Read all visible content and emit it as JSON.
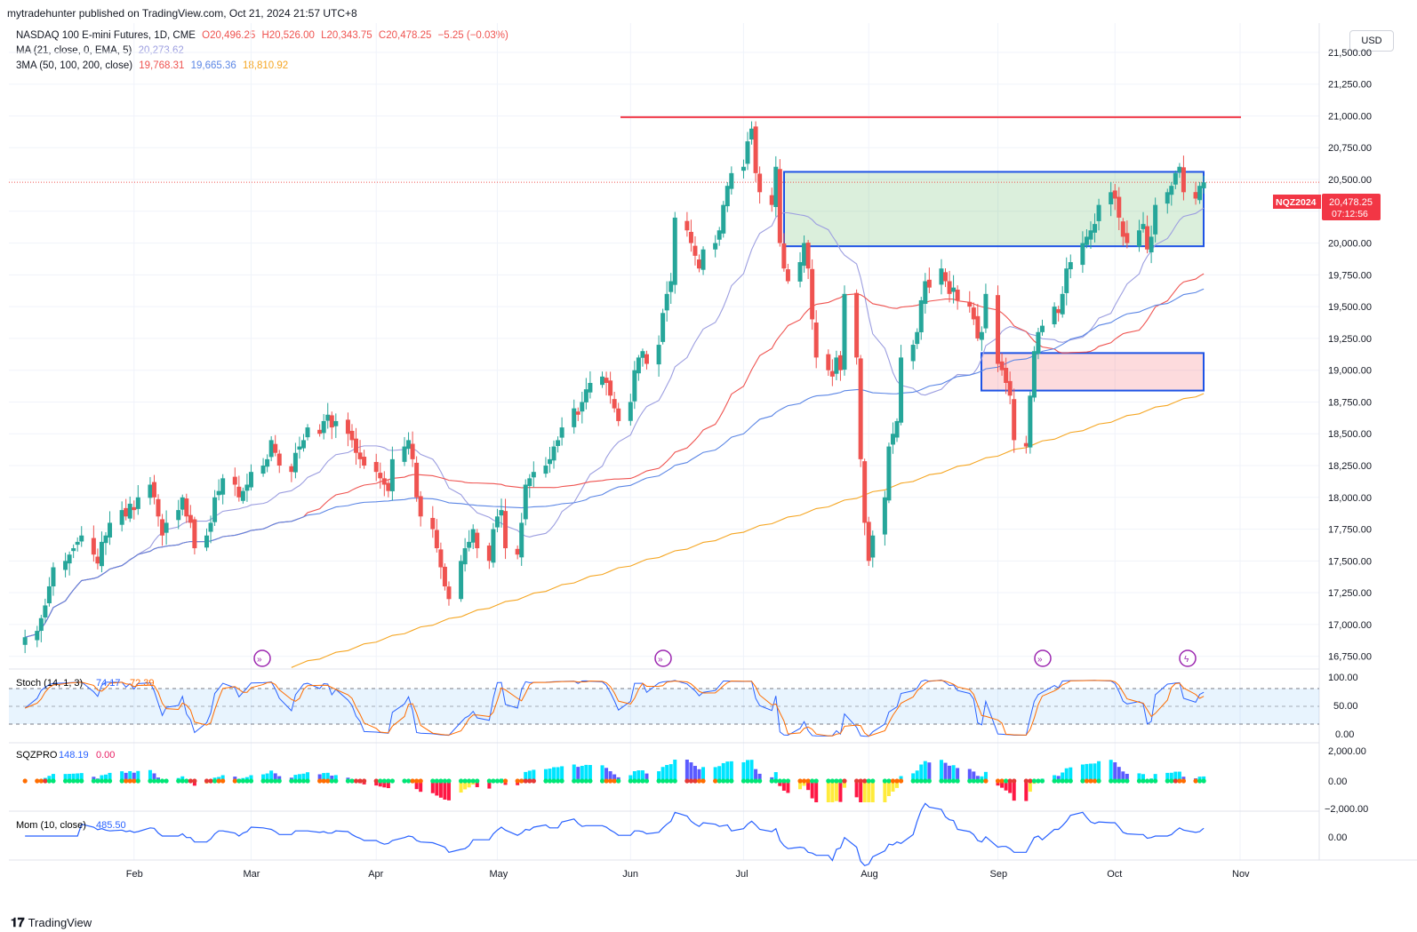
{
  "header": {
    "published": "mytradehunter published on TradingView.com, Oct 21, 2024 21:57 UTC+8"
  },
  "legend": {
    "symbol": "NASDAQ 100 E-mini Futures, 1D, CME",
    "o": "O20,496.25",
    "h": "H20,526.00",
    "l": "L20,343.75",
    "c": "C20,478.25",
    "chg": "−5.25 (−0.03%)",
    "ma_label": "MA (21, close, 0, EMA, 5)",
    "ma_val": "20,273.62",
    "ma3_label": "3MA (50, 100, 200, close)",
    "ma50": "19,768.31",
    "ma100": "19,665.36",
    "ma200": "18,810.92"
  },
  "currency_button": "USD",
  "price_badge": {
    "ticker": "NQZ2024",
    "price": "20,478.25",
    "timer": "07:12:56"
  },
  "colors": {
    "up": "#26a69a",
    "down": "#ef5350",
    "ma21": "#9c9ee0",
    "ma50": "#ef5350",
    "ma100": "#5b86e5",
    "ma200": "#f5a623",
    "resistance": "#f23645",
    "box_outline": "#1e53e5"
  },
  "indicators": {
    "stoch": {
      "label": "Stoch (14, 1, 3)",
      "k": "74.17",
      "d": "72.39",
      "ticks": [
        "100.00",
        "50.00",
        "0.00"
      ]
    },
    "sqzpro": {
      "label": "SQZPRO",
      "v1": "148.19",
      "v2": "0.00",
      "ticks": [
        "2,000.00",
        "0.00",
        "−2,000.00"
      ]
    },
    "mom": {
      "label": "Mom (10, close)",
      "value": "485.50",
      "ticks": [
        "0.00"
      ]
    }
  },
  "footer": {
    "brand": "TradingView"
  },
  "chart_data": {
    "type": "candlestick",
    "title": "NASDAQ 100 E-mini Futures, 1D, CME",
    "y_ticks": [
      16750,
      17000,
      17250,
      17500,
      17750,
      18000,
      18250,
      18500,
      18750,
      19000,
      19250,
      19500,
      19750,
      20000,
      20250,
      20500,
      20750,
      21000,
      21250,
      21500
    ],
    "y_tick_labels": [
      "16,750.00",
      "17,000.00",
      "17,250.00",
      "17,500.00",
      "17,750.00",
      "18,000.00",
      "18,250.00",
      "18,500.00",
      "18,750.00",
      "19,000.00",
      "19,250.00",
      "19,500.00",
      "19,750.00",
      "20,000.00",
      "20,250.00",
      "20,500.00",
      "20,750.00",
      "21,000.00",
      "21,250.00",
      "21,500.00"
    ],
    "ylim": [
      16650,
      21730
    ],
    "x_labels": [
      {
        "label": "Feb",
        "date": "2024-02-01"
      },
      {
        "label": "Mar",
        "date": "2024-03-01"
      },
      {
        "label": "Apr",
        "date": "2024-04-01"
      },
      {
        "label": "May",
        "date": "2024-05-01"
      },
      {
        "label": "Jun",
        "date": "2024-06-03"
      },
      {
        "label": "Jul",
        "date": "2024-07-01"
      },
      {
        "label": "Aug",
        "date": "2024-08-01"
      },
      {
        "label": "Sep",
        "date": "2024-09-02"
      },
      {
        "label": "Oct",
        "date": "2024-10-01"
      },
      {
        "label": "Nov",
        "date": "2024-11-01"
      }
    ],
    "first_bar_date": "2024-01-05",
    "close_series": [
      16900,
      16950,
      17050,
      17150,
      17300,
      17450,
      17500,
      17550,
      17600,
      17650,
      17700,
      17550,
      17480,
      17650,
      17700,
      17800,
      17900,
      17850,
      17950,
      17900,
      18000,
      18100,
      18000,
      17850,
      17700,
      17800,
      17900,
      18000,
      17850,
      17800,
      17600,
      17700,
      17800,
      18000,
      18050,
      18150,
      18100,
      18000,
      18050,
      18100,
      18200,
      18250,
      18300,
      18450,
      18350,
      18250,
      18200,
      18350,
      18400,
      18450,
      18550,
      18500,
      18600,
      18650,
      18550,
      18600,
      18500,
      18450,
      18350,
      18300,
      18250,
      18200,
      18150,
      18100,
      18050,
      18300,
      18400,
      18450,
      18300,
      18000,
      17850,
      17750,
      17600,
      17450,
      17300,
      17200,
      17500,
      17600,
      17650,
      17750,
      17600,
      17500,
      17750,
      17850,
      17900,
      17600,
      17550,
      17800,
      18100,
      18150,
      18200,
      18250,
      18300,
      18400,
      18450,
      18550,
      18700,
      18650,
      18750,
      18850,
      18900,
      18950,
      18900,
      18800,
      18700,
      18600,
      18750,
      19000,
      19100,
      19150,
      19050,
      19200,
      19450,
      19600,
      19700,
      20200,
      20100,
      20000,
      19900,
      19800,
      19950,
      20000,
      20100,
      20300,
      20450,
      20550,
      20600,
      20800,
      20900,
      20550,
      20400,
      20300,
      20600,
      20000,
      19800,
      19700,
      19850,
      20000,
      19800,
      19400,
      19100,
      19000,
      18950,
      19100,
      19000,
      19600,
      19100,
      18300,
      17800,
      17500,
      17700,
      18000,
      18400,
      18500,
      18600,
      19100,
      19200,
      19300,
      19550,
      19700,
      19650,
      19800,
      19700,
      19600,
      19650,
      19550,
      19500,
      19400,
      19250,
      19300,
      19600,
      19050,
      19000,
      18900,
      18800,
      18450,
      18400,
      18800,
      19150,
      19300,
      19350,
      19500,
      19450,
      19600,
      19800,
      19850,
      20000,
      20050,
      20100,
      20150,
      20300,
      20400,
      20350,
      20200,
      20050,
      20000,
      20100,
      20150,
      19950,
      20050,
      20300,
      20400,
      20450,
      20550,
      20600,
      20400,
      20350,
      20450,
      20478
    ],
    "annotations": [
      {
        "type": "horizontal_line",
        "price": 20990,
        "color": "red"
      },
      {
        "type": "rectangle",
        "top": 20560,
        "bottom": 19975,
        "fill": "green"
      },
      {
        "type": "rectangle",
        "top": 19135,
        "bottom": 18840,
        "fill": "red"
      }
    ]
  }
}
